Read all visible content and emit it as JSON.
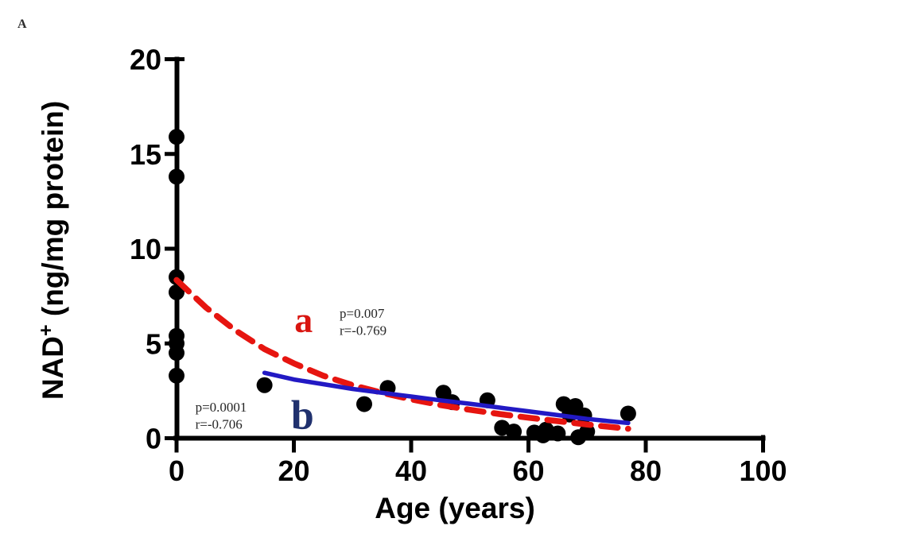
{
  "panel_label": "A",
  "chart_data": {
    "type": "scatter",
    "title": "",
    "xlabel": "Age (years)",
    "ylabel": "NAD+ (ng/mg protein)",
    "ylabel_parts": {
      "prefix": "NAD",
      "superscript": "+",
      "suffix": " (ng/mg protein)"
    },
    "xlim": [
      0,
      100
    ],
    "ylim": [
      0,
      20
    ],
    "xticks": [
      0,
      20,
      40,
      60,
      80,
      100
    ],
    "yticks": [
      0,
      5,
      10,
      15,
      20
    ],
    "grid": false,
    "legend": "none",
    "point_color": "#000000",
    "points": [
      [
        0,
        15.9
      ],
      [
        0,
        13.8
      ],
      [
        0,
        8.5
      ],
      [
        0,
        7.7
      ],
      [
        0,
        5.4
      ],
      [
        0,
        5.0
      ],
      [
        0,
        4.5
      ],
      [
        0,
        3.3
      ],
      [
        15,
        2.8
      ],
      [
        32,
        1.8
      ],
      [
        36,
        2.65
      ],
      [
        45.5,
        2.4
      ],
      [
        47,
        1.9
      ],
      [
        53,
        2.0
      ],
      [
        55.5,
        0.55
      ],
      [
        57.5,
        0.35
      ],
      [
        61,
        0.3
      ],
      [
        62.5,
        0.15
      ],
      [
        63,
        0.45
      ],
      [
        65,
        0.25
      ],
      [
        66,
        1.8
      ],
      [
        67,
        1.25
      ],
      [
        68,
        1.7
      ],
      [
        68.5,
        0.05
      ],
      [
        69.5,
        1.2
      ],
      [
        70,
        0.35
      ],
      [
        77,
        1.3
      ]
    ],
    "curves": [
      {
        "id": "a",
        "label": "a",
        "style": "dashed",
        "color": "#e61510",
        "stroke_width": 7.5,
        "p_text": "p=0.007",
        "r_text": "r=-0.769",
        "points_xy": [
          [
            0,
            8.35
          ],
          [
            5,
            6.9
          ],
          [
            10,
            5.7
          ],
          [
            15,
            4.7
          ],
          [
            20,
            3.95
          ],
          [
            25,
            3.3
          ],
          [
            30,
            2.8
          ],
          [
            35,
            2.4
          ],
          [
            40,
            2.05
          ],
          [
            45,
            1.75
          ],
          [
            50,
            1.5
          ],
          [
            55,
            1.28
          ],
          [
            60,
            1.08
          ],
          [
            65,
            0.9
          ],
          [
            70,
            0.72
          ],
          [
            77,
            0.5
          ]
        ]
      },
      {
        "id": "b",
        "label": "b",
        "style": "solid",
        "color": "#2219c4",
        "stroke_width": 5.5,
        "p_text": "p=0.0001",
        "r_text": "r=-0.706",
        "points_xy": [
          [
            15,
            3.45
          ],
          [
            20,
            3.1
          ],
          [
            25,
            2.85
          ],
          [
            30,
            2.6
          ],
          [
            35,
            2.4
          ],
          [
            40,
            2.2
          ],
          [
            45,
            2.0
          ],
          [
            50,
            1.82
          ],
          [
            55,
            1.62
          ],
          [
            60,
            1.42
          ],
          [
            65,
            1.22
          ],
          [
            70,
            1.02
          ],
          [
            77,
            0.8
          ]
        ]
      }
    ],
    "annotations": [
      {
        "name": "curve-a-letter",
        "text": "a",
        "ax": 20.1,
        "ay": 5.6,
        "color": "#d91510",
        "serif": true,
        "size": 46,
        "bold": true
      },
      {
        "name": "curve-a-p",
        "text": "p=0.007",
        "ax": 27.8,
        "ay": 6.35,
        "color": "#262626",
        "serif": true,
        "size": 17,
        "bold": false
      },
      {
        "name": "curve-a-r",
        "text": "r=-0.769",
        "ax": 27.8,
        "ay": 5.45,
        "color": "#262626",
        "serif": true,
        "size": 17,
        "bold": false
      },
      {
        "name": "curve-b-letter",
        "text": "b",
        "ax": 19.5,
        "ay": 0.5,
        "color": "#20316e",
        "serif": true,
        "size": 52,
        "bold": true
      },
      {
        "name": "curve-b-p",
        "text": "p=0.0001",
        "ax": 3.2,
        "ay": 1.4,
        "color": "#262626",
        "serif": true,
        "size": 17,
        "bold": false
      },
      {
        "name": "curve-b-r",
        "text": "r=-0.706",
        "ax": 3.2,
        "ay": 0.5,
        "color": "#262626",
        "serif": true,
        "size": 17,
        "bold": false
      }
    ]
  },
  "colors": {
    "axis": "#000000",
    "tick_text": "#000000",
    "background": "#ffffff",
    "curve_a": "#e61510",
    "curve_b": "#2219c4"
  }
}
